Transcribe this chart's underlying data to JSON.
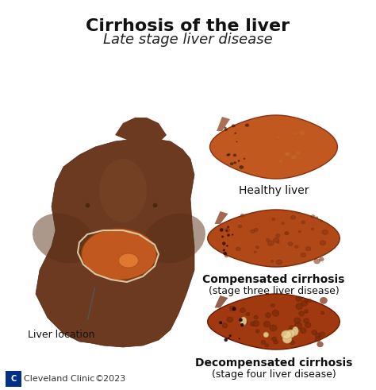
{
  "title": "Cirrhosis of the liver",
  "subtitle": "Late stage liver disease",
  "background_color": "#ffffff",
  "body_color": "#7B4A2D",
  "liver_color": "#C05820",
  "liver_healthy_color": "#C05820",
  "liver_comp_color": "#A04018",
  "liver_decomp_color": "#8B3010",
  "label_liver_location": "Liver location",
  "label_healthy": "Healthy liver",
  "label_comp": "Compensated cirrhosis",
  "label_comp_sub": "(stage three liver disease)",
  "label_decomp": "Decompensated cirrhosis",
  "label_decomp_sub": "(stage four liver disease)",
  "footer_logo": "Cleveland Clinic",
  "footer_year": "©2023",
  "title_fontsize": 16,
  "subtitle_fontsize": 13,
  "label_fontsize": 10,
  "bold_label_fontsize": 11
}
